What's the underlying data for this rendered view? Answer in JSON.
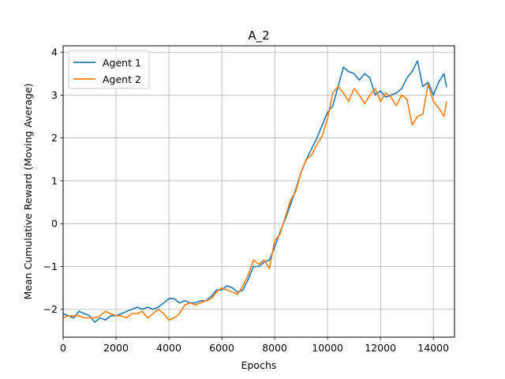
{
  "chart_data": {
    "type": "line",
    "title": "A_2",
    "xlabel": "Epochs",
    "ylabel": "Mean Cumulative Reward (Moving Average)",
    "xlim": [
      0,
      14800
    ],
    "ylim": [
      -2.65,
      4.15
    ],
    "xticks": [
      0,
      2000,
      4000,
      6000,
      8000,
      10000,
      12000,
      14000
    ],
    "xtick_labels": [
      "0",
      "2000",
      "4000",
      "6000",
      "8000",
      "10000",
      "12000",
      "14000"
    ],
    "yticks": [
      -2,
      -1,
      0,
      1,
      2,
      3,
      4
    ],
    "ytick_labels": [
      "−2",
      "−1",
      "0",
      "1",
      "2",
      "3",
      "4"
    ],
    "grid": true,
    "legend_position": "top-left",
    "series": [
      {
        "name": "Agent 1",
        "color": "#1f77b4",
        "x": [
          0,
          200,
          400,
          600,
          800,
          1000,
          1200,
          1400,
          1600,
          1800,
          2000,
          2200,
          2400,
          2600,
          2800,
          3000,
          3200,
          3400,
          3600,
          3800,
          4000,
          4200,
          4400,
          4600,
          4800,
          5000,
          5200,
          5400,
          5600,
          5800,
          6000,
          6200,
          6400,
          6600,
          6800,
          7000,
          7200,
          7400,
          7600,
          7800,
          8000,
          8200,
          8400,
          8600,
          8800,
          9000,
          9200,
          9400,
          9600,
          9800,
          10000,
          10200,
          10400,
          10600,
          10800,
          11000,
          11200,
          11400,
          11600,
          11800,
          12000,
          12200,
          12400,
          12600,
          12800,
          13000,
          13200,
          13400,
          13600,
          13800,
          14000,
          14200,
          14400,
          14500
        ],
        "y": [
          -2.1,
          -2.15,
          -2.2,
          -2.05,
          -2.1,
          -2.15,
          -2.3,
          -2.2,
          -2.25,
          -2.15,
          -2.15,
          -2.1,
          -2.05,
          -2.0,
          -1.95,
          -2.0,
          -1.95,
          -2.0,
          -1.95,
          -1.85,
          -1.75,
          -1.75,
          -1.85,
          -1.8,
          -1.85,
          -1.85,
          -1.8,
          -1.8,
          -1.7,
          -1.55,
          -1.55,
          -1.45,
          -1.5,
          -1.6,
          -1.55,
          -1.3,
          -1.0,
          -1.0,
          -0.9,
          -0.85,
          -0.55,
          -0.2,
          0.1,
          0.45,
          0.8,
          1.2,
          1.5,
          1.75,
          2.0,
          2.3,
          2.6,
          2.75,
          3.2,
          3.65,
          3.55,
          3.5,
          3.35,
          3.5,
          3.4,
          3.0,
          3.1,
          2.95,
          3.0,
          3.05,
          3.15,
          3.4,
          3.55,
          3.8,
          3.2,
          3.3,
          3.0,
          3.3,
          3.5,
          3.2
        ]
      },
      {
        "name": "Agent 2",
        "color": "#ff7f0e",
        "x": [
          0,
          200,
          400,
          600,
          800,
          1000,
          1200,
          1400,
          1600,
          1800,
          2000,
          2200,
          2400,
          2600,
          2800,
          3000,
          3200,
          3400,
          3600,
          3800,
          4000,
          4200,
          4400,
          4600,
          4800,
          5000,
          5200,
          5400,
          5600,
          5800,
          6000,
          6200,
          6400,
          6600,
          6800,
          7000,
          7200,
          7400,
          7600,
          7800,
          8000,
          8200,
          8400,
          8600,
          8800,
          9000,
          9200,
          9400,
          9600,
          9800,
          10000,
          10200,
          10400,
          10600,
          10800,
          11000,
          11200,
          11400,
          11600,
          11800,
          12000,
          12200,
          12400,
          12600,
          12800,
          13000,
          13200,
          13400,
          13600,
          13800,
          14000,
          14200,
          14400,
          14500
        ],
        "y": [
          -2.2,
          -2.15,
          -2.15,
          -2.15,
          -2.2,
          -2.2,
          -2.2,
          -2.15,
          -2.05,
          -2.1,
          -2.15,
          -2.15,
          -2.2,
          -2.1,
          -2.1,
          -2.05,
          -2.2,
          -2.1,
          -2.0,
          -2.1,
          -2.25,
          -2.2,
          -2.1,
          -1.9,
          -1.85,
          -1.9,
          -1.85,
          -1.8,
          -1.75,
          -1.6,
          -1.5,
          -1.55,
          -1.6,
          -1.65,
          -1.45,
          -1.2,
          -0.85,
          -0.95,
          -0.85,
          -1.05,
          -0.4,
          -0.25,
          0.15,
          0.55,
          0.75,
          1.2,
          1.5,
          1.6,
          1.85,
          2.05,
          2.45,
          3.05,
          3.2,
          3.05,
          2.85,
          3.15,
          3.0,
          2.8,
          3.0,
          3.15,
          2.85,
          3.05,
          2.95,
          2.75,
          3.0,
          2.9,
          2.3,
          2.5,
          2.55,
          3.25,
          2.85,
          2.7,
          2.5,
          2.85
        ]
      }
    ]
  }
}
